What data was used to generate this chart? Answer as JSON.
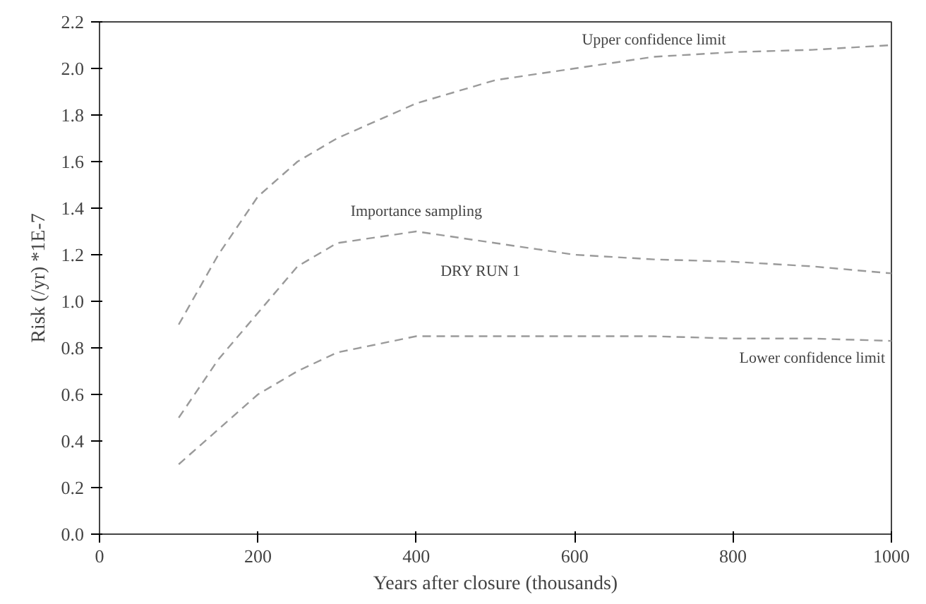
{
  "chart_data": {
    "type": "line",
    "subtitle": "DRY RUN 1",
    "xlabel": "Years after closure (thousands)",
    "ylabel": "Risk (/yr) *1E-7",
    "x": [
      100,
      150,
      200,
      250,
      300,
      400,
      500,
      600,
      700,
      800,
      900,
      1000
    ],
    "series": [
      {
        "name": "Upper confidence limit",
        "color": "#9a9a9a",
        "values": [
          0.9,
          1.2,
          1.45,
          1.6,
          1.7,
          1.85,
          1.95,
          2.0,
          2.05,
          2.07,
          2.08,
          2.1
        ]
      },
      {
        "name": "Importance sampling",
        "color": "#9a9a9a",
        "values": [
          0.5,
          0.75,
          0.95,
          1.15,
          1.25,
          1.3,
          1.25,
          1.2,
          1.18,
          1.17,
          1.15,
          1.12
        ]
      },
      {
        "name": "Lower confidence limit",
        "color": "#9a9a9a",
        "values": [
          0.3,
          0.45,
          0.6,
          0.7,
          0.78,
          0.85,
          0.85,
          0.85,
          0.85,
          0.84,
          0.84,
          0.83
        ]
      }
    ],
    "xlim": [
      0,
      1000
    ],
    "ylim": [
      0,
      2.2
    ],
    "xticks": [
      0,
      200,
      400,
      600,
      800,
      1000
    ],
    "yticks": [
      {
        "value": 0,
        "label": "0.0"
      },
      {
        "value": 0.2,
        "label": "0.2"
      },
      {
        "value": 0.4,
        "label": "0.4"
      },
      {
        "value": 0.6,
        "label": "0.6"
      },
      {
        "value": 0.8,
        "label": "0.8"
      },
      {
        "value": 1.0,
        "label": "1.0"
      },
      {
        "value": 1.2,
        "label": "1.2"
      },
      {
        "value": 1.4,
        "label": "1.4"
      },
      {
        "value": 1.6,
        "label": "1.6"
      },
      {
        "value": 1.8,
        "label": "1.8"
      },
      {
        "value": 2.0,
        "label": "2.0"
      },
      {
        "value": 2.2,
        "label": "2.2"
      }
    ],
    "grid": false,
    "marker": "none",
    "line_style": "dashed"
  }
}
